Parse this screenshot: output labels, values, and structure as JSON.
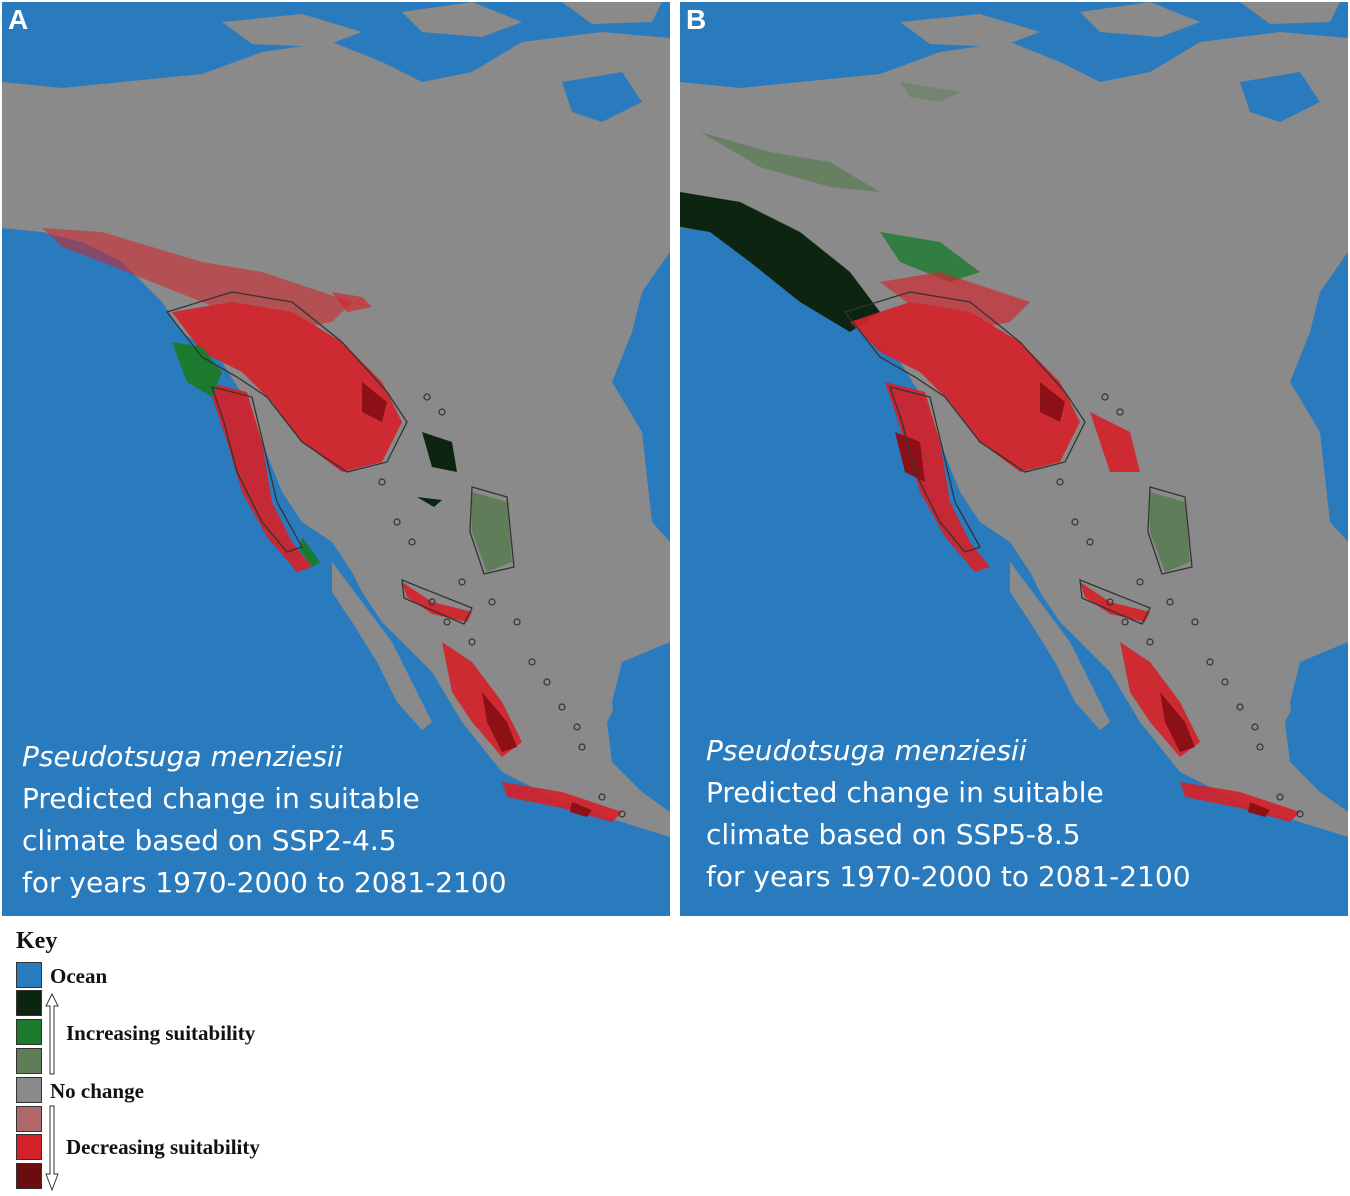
{
  "panels": [
    {
      "letter": "A",
      "species": "Pseudotsuga menziesii",
      "lines": [
        "Predicted change in suitable",
        "climate based on SSP2-4.5",
        "for years 1970-2000 to 2081-2100"
      ]
    },
    {
      "letter": "B",
      "species": "Pseudotsuga menziesii",
      "lines": [
        "Predicted change in suitable",
        "climate based on SSP5-8.5",
        "for years 1970-2000 to 2081-2100"
      ]
    }
  ],
  "key": {
    "title": "Key",
    "swatches": [
      {
        "name": "ocean",
        "color": "#2a7bbd"
      },
      {
        "name": "dark-green",
        "color": "#0d2410"
      },
      {
        "name": "mid-green",
        "color": "#1c7a2e"
      },
      {
        "name": "light-green",
        "color": "#5f7d58"
      },
      {
        "name": "no-change",
        "color": "#8a8a8a"
      },
      {
        "name": "light-red",
        "color": "#b06868"
      },
      {
        "name": "mid-red",
        "color": "#d4222a"
      },
      {
        "name": "dark-red",
        "color": "#6a0c10"
      }
    ],
    "labels": {
      "ocean": "Ocean",
      "increasing": "Increasing suitability",
      "no_change": "No change",
      "decreasing": "Decreasing suitability"
    }
  },
  "colors": {
    "ocean": "#2a7bbd",
    "land": "#8a8a8a",
    "decrease": "#d4222a",
    "decrease_dark": "#8c1016",
    "increase": "#1c7a2e",
    "increase_dark": "#0d2410",
    "increase_light": "#5f7d58"
  }
}
